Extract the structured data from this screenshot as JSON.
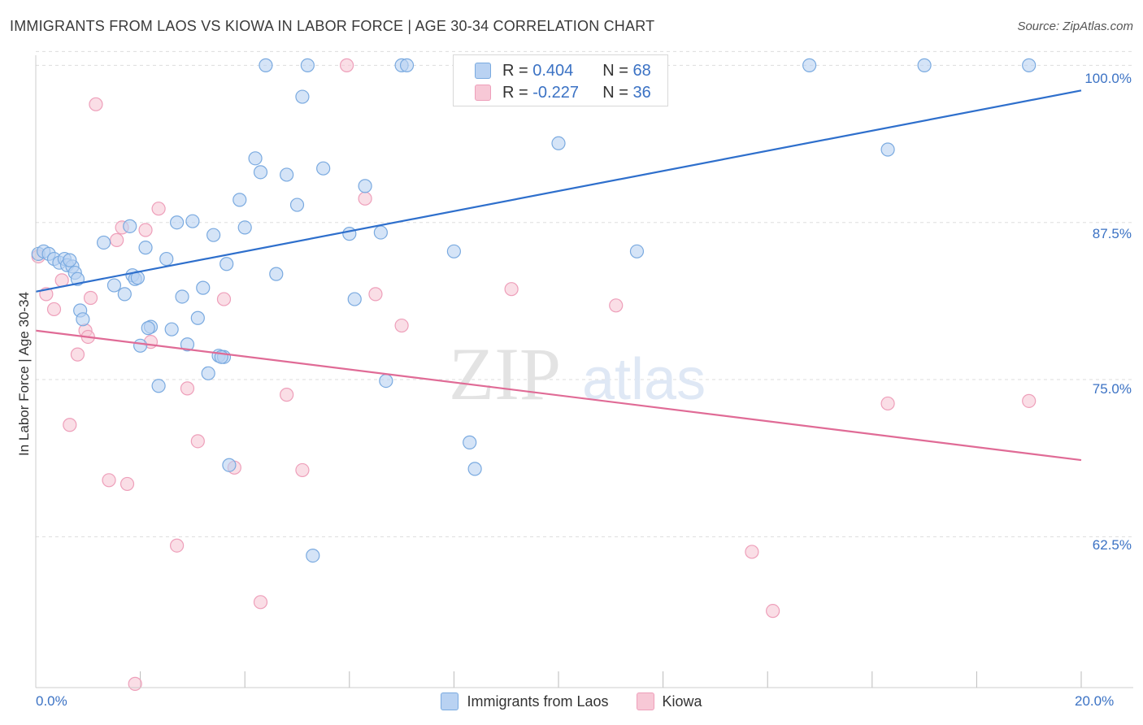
{
  "header": {
    "title": "IMMIGRANTS FROM LAOS VS KIOWA IN LABOR FORCE | AGE 30-34 CORRELATION CHART",
    "source": "Source: ZipAtlas.com"
  },
  "watermark": {
    "text_zip": "ZIP",
    "text_atlas": "atlas"
  },
  "legend_stats": {
    "laos": {
      "r_label": "R =",
      "r_value": "0.404",
      "n_label": "N =",
      "n_value": "68"
    },
    "kiowa": {
      "r_label": "R =",
      "r_value": "-0.227",
      "n_label": "N =",
      "n_value": "36"
    }
  },
  "colors": {
    "laos_fill": "#b9d2f2",
    "laos_stroke": "#7aaae0",
    "laos_line": "#2e6fcc",
    "kiowa_fill": "#f7c8d6",
    "kiowa_stroke": "#ee9fba",
    "kiowa_line": "#e06b96",
    "tick_text": "#3b72c4",
    "grid": "#dddddd"
  },
  "chart_data": {
    "type": "scatter",
    "title": "IMMIGRANTS FROM LAOS VS KIOWA IN LABOR FORCE | AGE 30-34 CORRELATION CHART",
    "xlabel": "",
    "ylabel": "In Labor Force | Age 30-34",
    "xlim": [
      0,
      20
    ],
    "ylim": [
      50.5,
      100.8
    ],
    "x_ticks": [
      "0.0%",
      "20.0%"
    ],
    "y_ticks": [
      {
        "value": 100.0,
        "label": "100.0%"
      },
      {
        "value": 87.5,
        "label": "87.5%"
      },
      {
        "value": 75.0,
        "label": "75.0%"
      },
      {
        "value": 62.5,
        "label": "62.5%"
      }
    ],
    "grid": true,
    "legend_position": "bottom",
    "series": [
      {
        "name": "Immigrants from Laos",
        "trend": {
          "x": [
            0,
            20
          ],
          "y": [
            82.0,
            98.0
          ]
        },
        "points": [
          [
            0.05,
            85.0
          ],
          [
            0.15,
            85.2
          ],
          [
            0.25,
            85.0
          ],
          [
            0.35,
            84.6
          ],
          [
            0.45,
            84.3
          ],
          [
            0.55,
            84.6
          ],
          [
            0.6,
            84.1
          ],
          [
            0.7,
            84.0
          ],
          [
            0.75,
            83.5
          ],
          [
            0.8,
            83.0
          ],
          [
            0.85,
            80.5
          ],
          [
            0.9,
            79.8
          ],
          [
            1.3,
            85.9
          ],
          [
            1.5,
            82.5
          ],
          [
            1.7,
            81.8
          ],
          [
            1.8,
            87.2
          ],
          [
            1.85,
            83.3
          ],
          [
            1.9,
            83.0
          ],
          [
            2.0,
            77.7
          ],
          [
            2.1,
            85.5
          ],
          [
            2.2,
            79.2
          ],
          [
            2.35,
            74.5
          ],
          [
            2.5,
            84.6
          ],
          [
            2.6,
            79.0
          ],
          [
            2.7,
            87.5
          ],
          [
            2.8,
            81.6
          ],
          [
            2.9,
            77.8
          ],
          [
            3.0,
            87.6
          ],
          [
            3.1,
            79.9
          ],
          [
            3.2,
            82.3
          ],
          [
            3.3,
            75.5
          ],
          [
            3.4,
            86.5
          ],
          [
            3.5,
            76.9
          ],
          [
            3.6,
            76.8
          ],
          [
            3.65,
            84.2
          ],
          [
            3.7,
            68.2
          ],
          [
            3.9,
            89.3
          ],
          [
            4.0,
            87.1
          ],
          [
            4.2,
            92.6
          ],
          [
            4.3,
            91.5
          ],
          [
            4.4,
            100.0
          ],
          [
            4.6,
            83.4
          ],
          [
            4.8,
            91.3
          ],
          [
            5.0,
            88.9
          ],
          [
            5.1,
            97.5
          ],
          [
            5.2,
            100.0
          ],
          [
            5.3,
            61.0
          ],
          [
            5.5,
            91.8
          ],
          [
            6.0,
            86.6
          ],
          [
            6.1,
            81.4
          ],
          [
            6.3,
            90.4
          ],
          [
            6.6,
            86.7
          ],
          [
            6.7,
            74.9
          ],
          [
            7.0,
            100.0
          ],
          [
            7.1,
            100.0
          ],
          [
            8.0,
            85.2
          ],
          [
            8.3,
            70.0
          ],
          [
            8.4,
            67.9
          ],
          [
            10.0,
            93.8
          ],
          [
            11.5,
            85.2
          ],
          [
            14.8,
            100.0
          ],
          [
            16.3,
            93.3
          ],
          [
            17.0,
            100.0
          ],
          [
            19.0,
            100.0
          ],
          [
            3.55,
            76.8
          ],
          [
            2.15,
            79.1
          ],
          [
            1.95,
            83.1
          ],
          [
            0.65,
            84.5
          ]
        ]
      },
      {
        "name": "Kiowa",
        "trend": {
          "x": [
            0,
            20
          ],
          "y": [
            78.9,
            68.6
          ]
        },
        "points": [
          [
            0.05,
            84.8
          ],
          [
            0.2,
            81.8
          ],
          [
            0.35,
            80.6
          ],
          [
            0.5,
            82.9
          ],
          [
            0.65,
            71.4
          ],
          [
            0.8,
            77.0
          ],
          [
            0.95,
            78.9
          ],
          [
            1.0,
            78.4
          ],
          [
            1.05,
            81.5
          ],
          [
            1.15,
            96.9
          ],
          [
            1.4,
            67.0
          ],
          [
            1.55,
            86.1
          ],
          [
            1.65,
            87.1
          ],
          [
            1.75,
            66.7
          ],
          [
            1.9,
            50.8
          ],
          [
            2.1,
            86.9
          ],
          [
            2.2,
            78.0
          ],
          [
            2.35,
            88.6
          ],
          [
            2.7,
            61.8
          ],
          [
            2.9,
            74.3
          ],
          [
            3.1,
            70.1
          ],
          [
            3.6,
            81.4
          ],
          [
            3.8,
            68.0
          ],
          [
            4.3,
            57.3
          ],
          [
            4.8,
            73.8
          ],
          [
            5.1,
            67.8
          ],
          [
            5.95,
            100.0
          ],
          [
            6.3,
            89.4
          ],
          [
            6.5,
            81.8
          ],
          [
            7.0,
            79.3
          ],
          [
            9.1,
            82.2
          ],
          [
            11.1,
            80.9
          ],
          [
            13.7,
            61.3
          ],
          [
            14.1,
            56.6
          ],
          [
            16.3,
            73.1
          ],
          [
            19.0,
            73.3
          ]
        ]
      }
    ]
  },
  "bottom_legend": [
    {
      "label": "Immigrants from Laos"
    },
    {
      "label": "Kiowa"
    }
  ]
}
